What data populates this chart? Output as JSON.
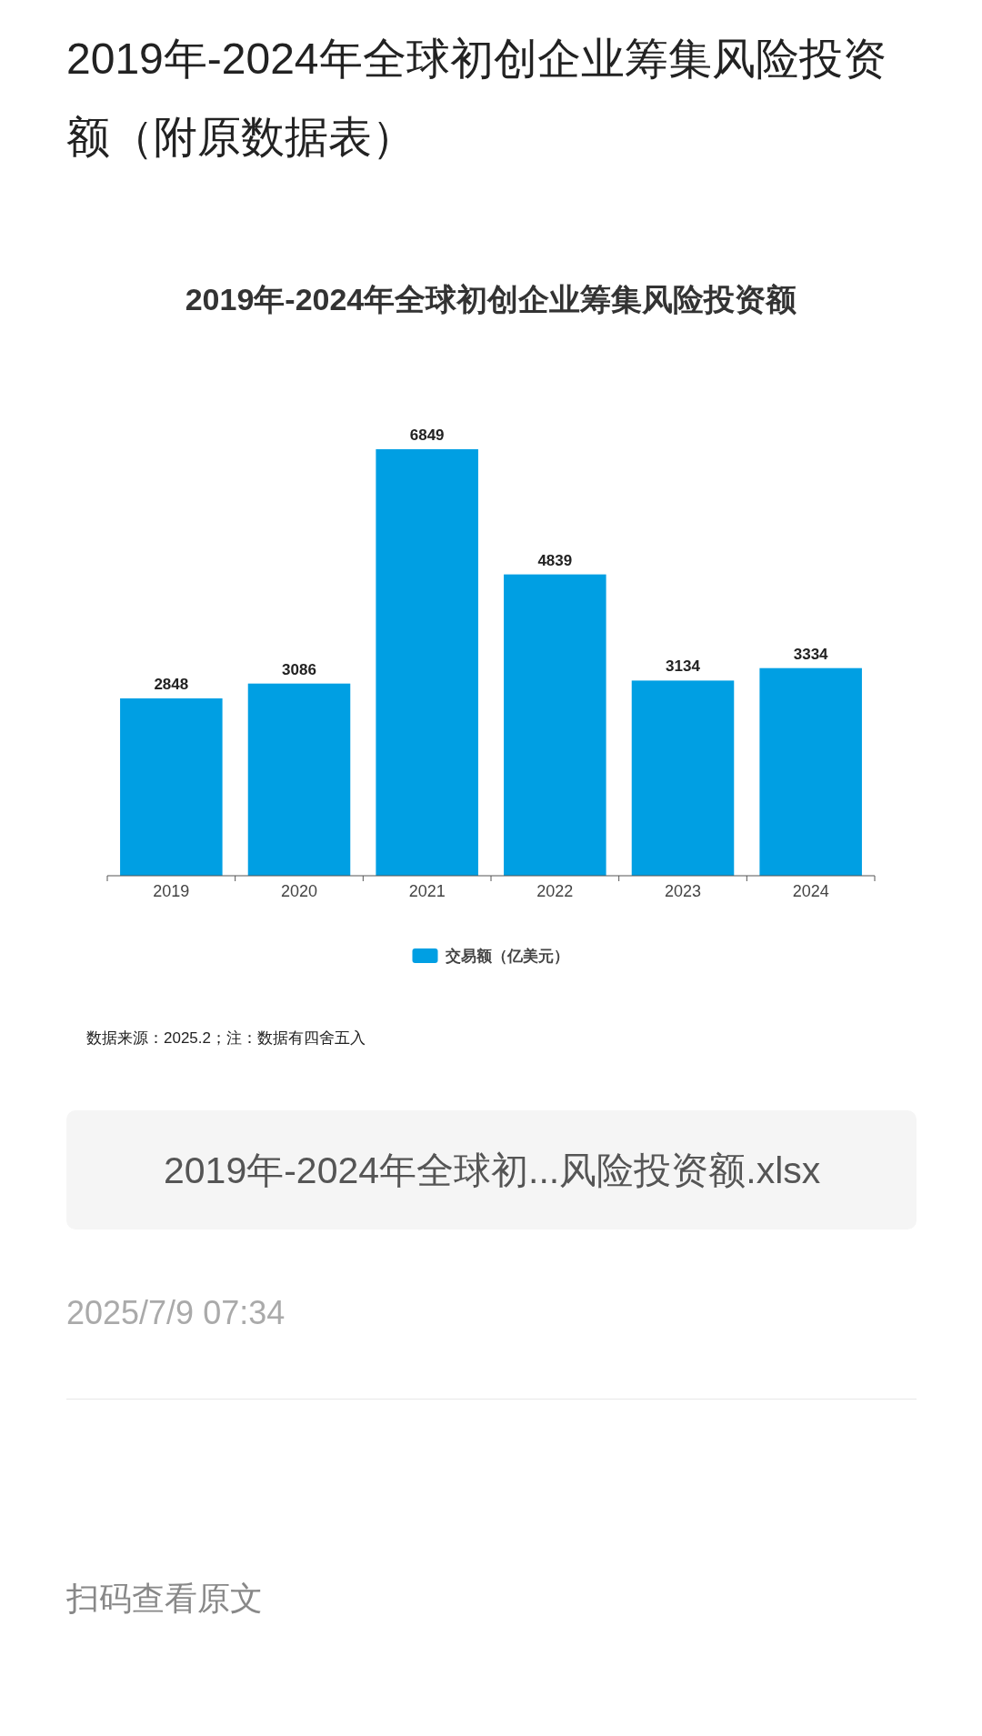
{
  "chart_data": {
    "type": "bar",
    "title": "2019年-2024年全球初创企业筹集风险投资额（附原数据表）",
    "subtitle": "2019年-2024年全球初创企业筹集风险投资额",
    "categories": [
      "2019",
      "2020",
      "2021",
      "2022",
      "2023",
      "2024"
    ],
    "series": [
      {
        "name": "交易额（亿美元）",
        "color": "#009fe3",
        "values": [
          2848,
          3086,
          6849,
          4839,
          3134,
          3334
        ]
      }
    ],
    "data_labels": true,
    "legend": "bottom",
    "annotations": [
      "数据来源：2025.2；注：数据有四舍五入",
      "2019年-2024年全球初...风险投资额.xlsx",
      "2025/7/9 07:34",
      "扫码查看原文"
    ]
  }
}
